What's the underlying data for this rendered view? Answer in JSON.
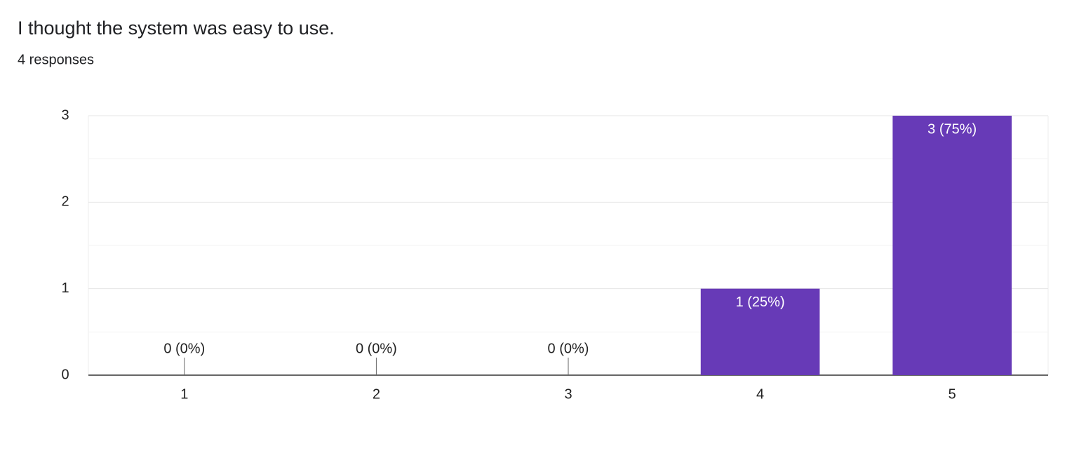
{
  "chart_data": {
    "type": "bar",
    "title": "I thought the system was easy to use.",
    "subtitle": "4 responses",
    "categories": [
      "1",
      "2",
      "3",
      "4",
      "5"
    ],
    "values": [
      0,
      0,
      0,
      1,
      3
    ],
    "value_labels": [
      "0 (0%)",
      "0 (0%)",
      "0 (0%)",
      "1 (25%)",
      "3 (75%)"
    ],
    "color": "#673ab7",
    "ylim": [
      0,
      3
    ],
    "yticks": [
      0,
      1,
      2,
      3
    ],
    "minor_yticks": [
      0.5,
      1.5,
      2.5
    ],
    "grid": true
  }
}
